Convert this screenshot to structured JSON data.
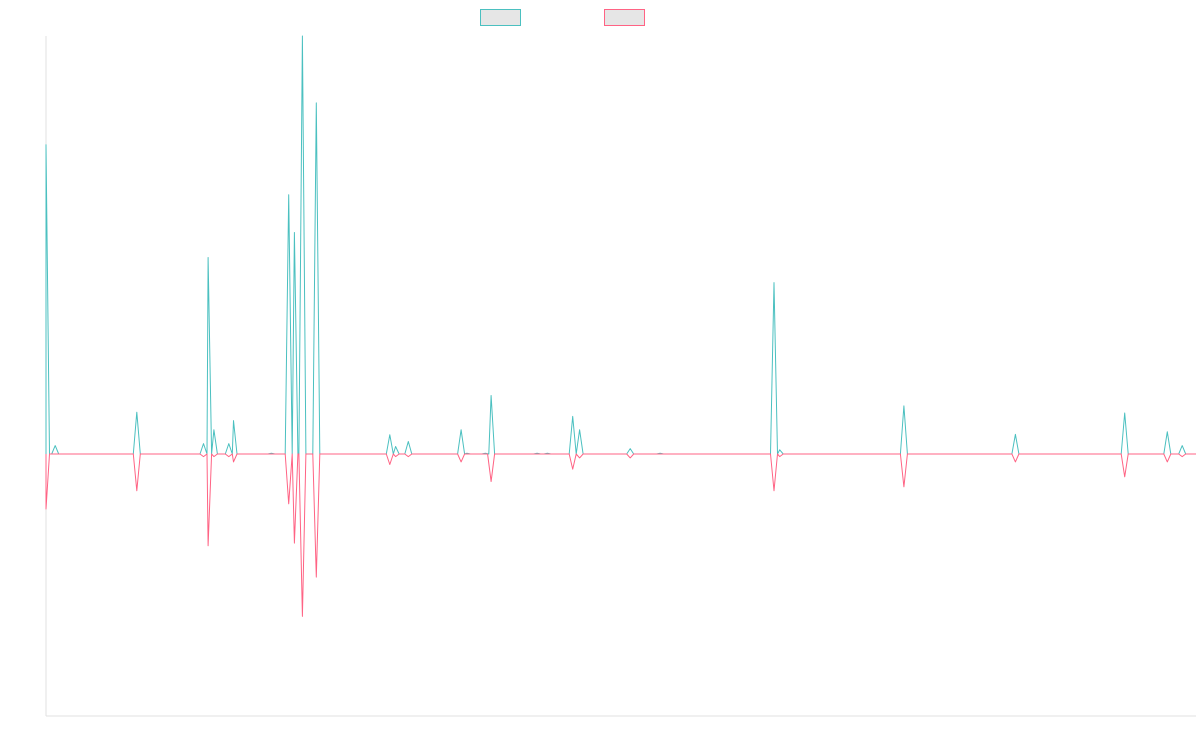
{
  "chart_data": {
    "type": "line",
    "title": "",
    "xlabel": "",
    "ylabel": "",
    "grid": false,
    "legend": "top-center",
    "colors": {
      "series_1": "#4bc0c0",
      "series_2": "#ff6384",
      "legend_fill": "#e6e6e6",
      "axis": "#e0e0e0"
    },
    "ylim": [
      -1,
      1
    ],
    "xlim": [
      0,
      100
    ],
    "baseline": 0,
    "series": [
      {
        "name": "",
        "stroke": "#4bc0c0",
        "spikes": [
          {
            "x": 0.0,
            "v": 0.74
          },
          {
            "x": 0.8,
            "v": 0.02
          },
          {
            "x": 7.9,
            "v": 0.1
          },
          {
            "x": 13.7,
            "v": 0.025
          },
          {
            "x": 14.1,
            "v": 0.47
          },
          {
            "x": 14.6,
            "v": 0.058
          },
          {
            "x": 15.9,
            "v": 0.025
          },
          {
            "x": 16.3,
            "v": 0.08
          },
          {
            "x": 19.6,
            "v": 0.002
          },
          {
            "x": 21.1,
            "v": 0.62
          },
          {
            "x": 21.6,
            "v": 0.53
          },
          {
            "x": 22.3,
            "v": 1.0
          },
          {
            "x": 23.5,
            "v": 0.84
          },
          {
            "x": 29.9,
            "v": 0.046
          },
          {
            "x": 30.4,
            "v": 0.018
          },
          {
            "x": 31.5,
            "v": 0.03
          },
          {
            "x": 36.1,
            "v": 0.058
          },
          {
            "x": 36.6,
            "v": 0.002
          },
          {
            "x": 38.2,
            "v": 0.002
          },
          {
            "x": 38.7,
            "v": 0.14
          },
          {
            "x": 42.7,
            "v": 0.002
          },
          {
            "x": 43.6,
            "v": 0.002
          },
          {
            "x": 45.8,
            "v": 0.09
          },
          {
            "x": 46.4,
            "v": 0.058
          },
          {
            "x": 50.8,
            "v": 0.013
          },
          {
            "x": 53.4,
            "v": 0.002
          },
          {
            "x": 63.3,
            "v": 0.41
          },
          {
            "x": 63.8,
            "v": 0.01
          },
          {
            "x": 74.6,
            "v": 0.115
          },
          {
            "x": 84.3,
            "v": 0.047
          },
          {
            "x": 93.8,
            "v": 0.098
          },
          {
            "x": 97.5,
            "v": 0.053
          },
          {
            "x": 98.8,
            "v": 0.02
          }
        ]
      },
      {
        "name": "",
        "stroke": "#ff6384",
        "spikes": [
          {
            "x": 0.0,
            "v": -0.21
          },
          {
            "x": 7.9,
            "v": -0.14
          },
          {
            "x": 13.7,
            "v": -0.01
          },
          {
            "x": 14.1,
            "v": -0.35
          },
          {
            "x": 14.6,
            "v": -0.01
          },
          {
            "x": 15.9,
            "v": -0.01
          },
          {
            "x": 16.3,
            "v": -0.03
          },
          {
            "x": 21.1,
            "v": -0.19
          },
          {
            "x": 21.6,
            "v": -0.34
          },
          {
            "x": 22.3,
            "v": -0.62
          },
          {
            "x": 23.5,
            "v": -0.47
          },
          {
            "x": 29.9,
            "v": -0.04
          },
          {
            "x": 30.4,
            "v": -0.01
          },
          {
            "x": 31.5,
            "v": -0.01
          },
          {
            "x": 36.1,
            "v": -0.03
          },
          {
            "x": 38.7,
            "v": -0.105
          },
          {
            "x": 45.8,
            "v": -0.058
          },
          {
            "x": 46.4,
            "v": -0.015
          },
          {
            "x": 50.8,
            "v": -0.015
          },
          {
            "x": 63.3,
            "v": -0.14
          },
          {
            "x": 63.8,
            "v": -0.01
          },
          {
            "x": 74.6,
            "v": -0.125
          },
          {
            "x": 84.3,
            "v": -0.03
          },
          {
            "x": 93.8,
            "v": -0.087
          },
          {
            "x": 97.5,
            "v": -0.03
          },
          {
            "x": 98.8,
            "v": -0.01
          }
        ]
      }
    ]
  }
}
